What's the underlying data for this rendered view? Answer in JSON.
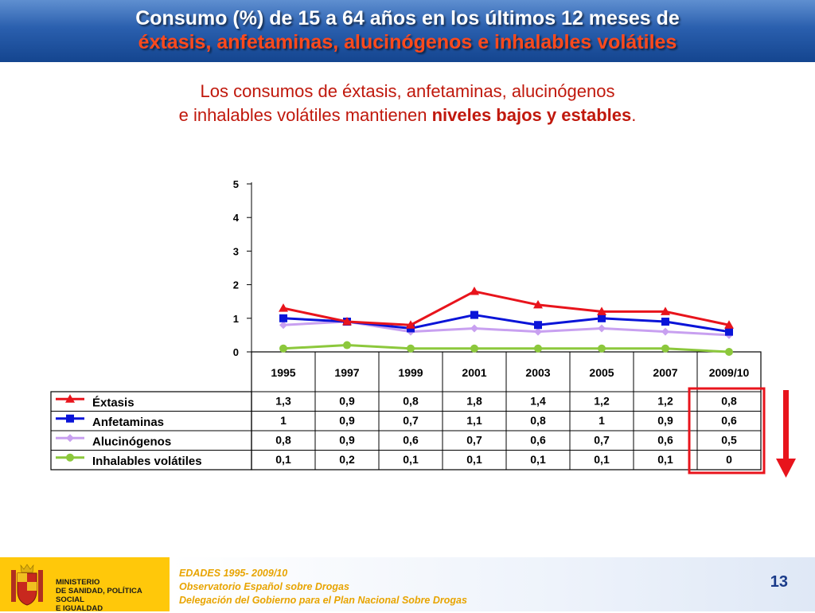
{
  "header": {
    "title_line1": "Consumo (%) de 15 a 64 años en los últimos 12 meses de",
    "title_line2": "éxtasis, anfetaminas, alucinógenos e inhalables volátiles"
  },
  "subtitle": {
    "line1": "Los consumos de éxtasis, anfetaminas, alucinógenos",
    "line2_prefix": "e inhalables volátiles mantienen ",
    "line2_bold": "niveles bajos y estables",
    "line2_suffix": "."
  },
  "chart_data": {
    "type": "line",
    "categories": [
      "1995",
      "1997",
      "1999",
      "2001",
      "2003",
      "2005",
      "2007",
      "2009/10"
    ],
    "ylim": [
      0,
      5
    ],
    "yticks": [
      0,
      1,
      2,
      3,
      4,
      5
    ],
    "series": [
      {
        "name": "Éxtasis",
        "color": "#e8141c",
        "marker": "triangle",
        "values": [
          1.3,
          0.9,
          0.8,
          1.8,
          1.4,
          1.2,
          1.2,
          0.8
        ],
        "labels": [
          "1,3",
          "0,9",
          "0,8",
          "1,8",
          "1,4",
          "1,2",
          "1,2",
          "0,8"
        ]
      },
      {
        "name": "Anfetaminas",
        "color": "#0a14d8",
        "marker": "square",
        "values": [
          1,
          0.9,
          0.7,
          1.1,
          0.8,
          1,
          0.9,
          0.6
        ],
        "labels": [
          "1",
          "0,9",
          "0,7",
          "1,1",
          "0,8",
          "1",
          "0,9",
          "0,6"
        ]
      },
      {
        "name": "Alucinógenos",
        "color": "#c8a0f0",
        "marker": "diamond",
        "values": [
          0.8,
          0.9,
          0.6,
          0.7,
          0.6,
          0.7,
          0.6,
          0.5
        ],
        "labels": [
          "0,8",
          "0,9",
          "0,6",
          "0,7",
          "0,6",
          "0,7",
          "0,6",
          "0,5"
        ]
      },
      {
        "name": "Inhalables volátiles",
        "color": "#8cc83c",
        "marker": "circle",
        "values": [
          0.1,
          0.2,
          0.1,
          0.1,
          0.1,
          0.1,
          0.1,
          0
        ],
        "labels": [
          "0,1",
          "0,2",
          "0,1",
          "0,1",
          "0,1",
          "0,1",
          "0,1",
          "0"
        ]
      }
    ],
    "highlight": {
      "column": "2009/10",
      "color": "#e8141c"
    },
    "trend_arrow": {
      "direction": "down",
      "color": "#e8141c"
    }
  },
  "footer": {
    "ministry_line1": "MINISTERIO",
    "ministry_line2": "DE SANIDAD, POLÍTICA SOCIAL",
    "ministry_line3": "E IGUALDAD",
    "source_line1": "EDADES 1995- 2009/10",
    "source_line2": "Observatorio Español sobre Drogas",
    "source_line3": "Delegación del Gobierno para el Plan Nacional Sobre Drogas",
    "page_number": "13"
  },
  "colors": {
    "accent_red": "#c0180c",
    "header_blue": "#2a5fae",
    "footer_yellow": "#ffc80a"
  }
}
